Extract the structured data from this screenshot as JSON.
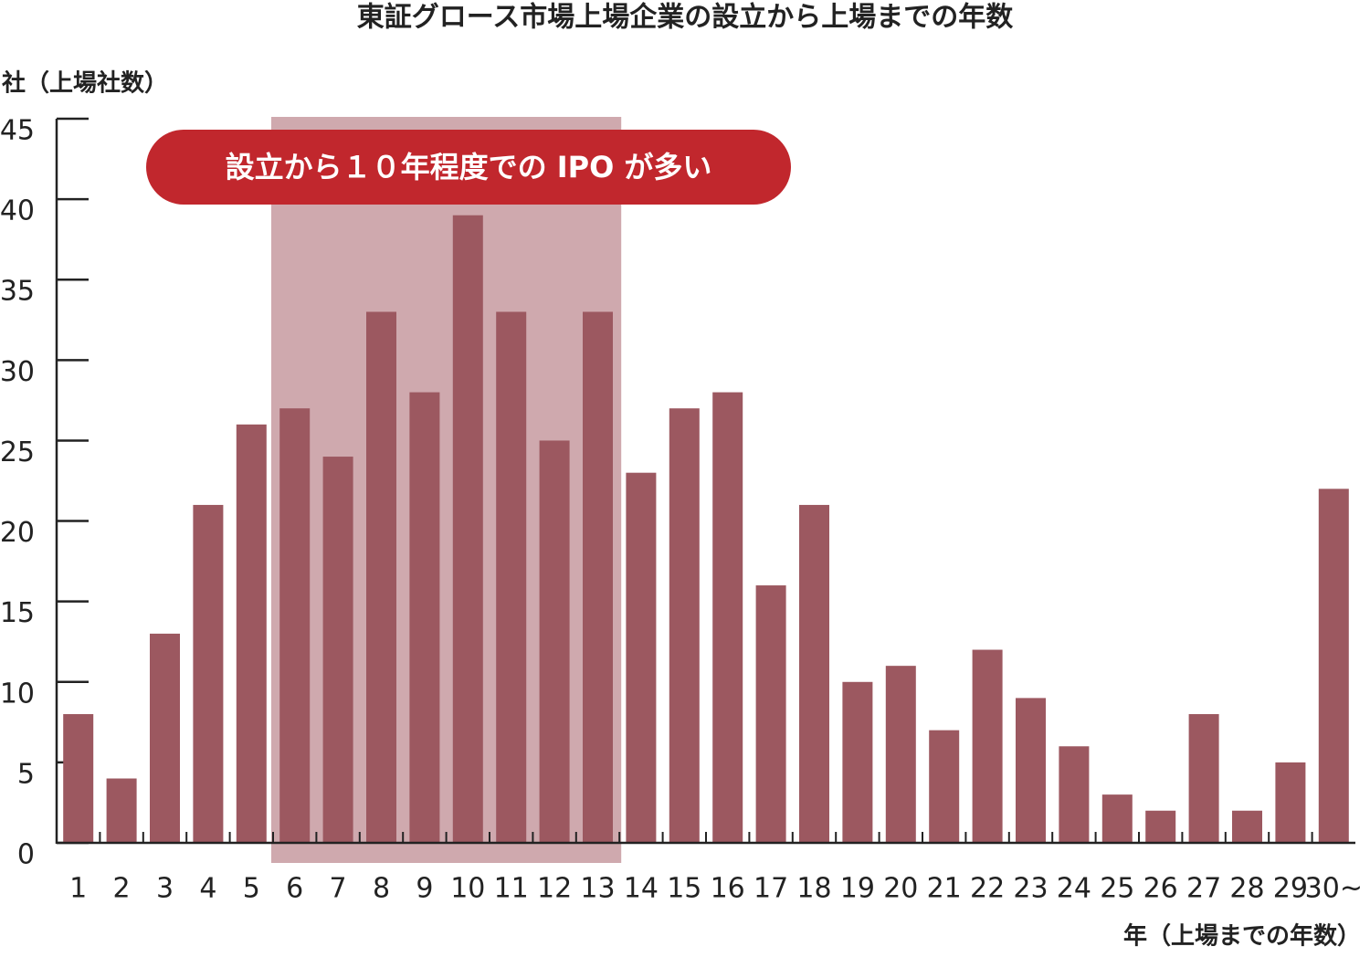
{
  "chart_data": {
    "type": "bar",
    "title": "東証グロース市場上場企業の設立から上場までの年数",
    "y_label": "社（上場社数）",
    "x_label": "年（上場までの年数）",
    "categories": [
      "1",
      "2",
      "3",
      "4",
      "5",
      "6",
      "7",
      "8",
      "9",
      "10",
      "11",
      "12",
      "13",
      "14",
      "15",
      "16",
      "17",
      "18",
      "19",
      "20",
      "21",
      "22",
      "23",
      "24",
      "25",
      "26",
      "27",
      "28",
      "29",
      "30~"
    ],
    "values": [
      8,
      4,
      13,
      21,
      26,
      27,
      24,
      33,
      28,
      39,
      33,
      25,
      33,
      23,
      27,
      28,
      16,
      21,
      10,
      11,
      7,
      12,
      9,
      6,
      3,
      2,
      8,
      2,
      5,
      22
    ],
    "color": "#9c5860",
    "ylim": [
      0,
      45
    ],
    "yticks": [
      0,
      5,
      10,
      15,
      20,
      25,
      30,
      35,
      40,
      45
    ],
    "grid": false,
    "annotation": {
      "text": "設立から１０年程度での IPO が多い",
      "from": "6",
      "to": "13",
      "color": "#c1272d",
      "band_color": "#cfa9ae"
    }
  }
}
